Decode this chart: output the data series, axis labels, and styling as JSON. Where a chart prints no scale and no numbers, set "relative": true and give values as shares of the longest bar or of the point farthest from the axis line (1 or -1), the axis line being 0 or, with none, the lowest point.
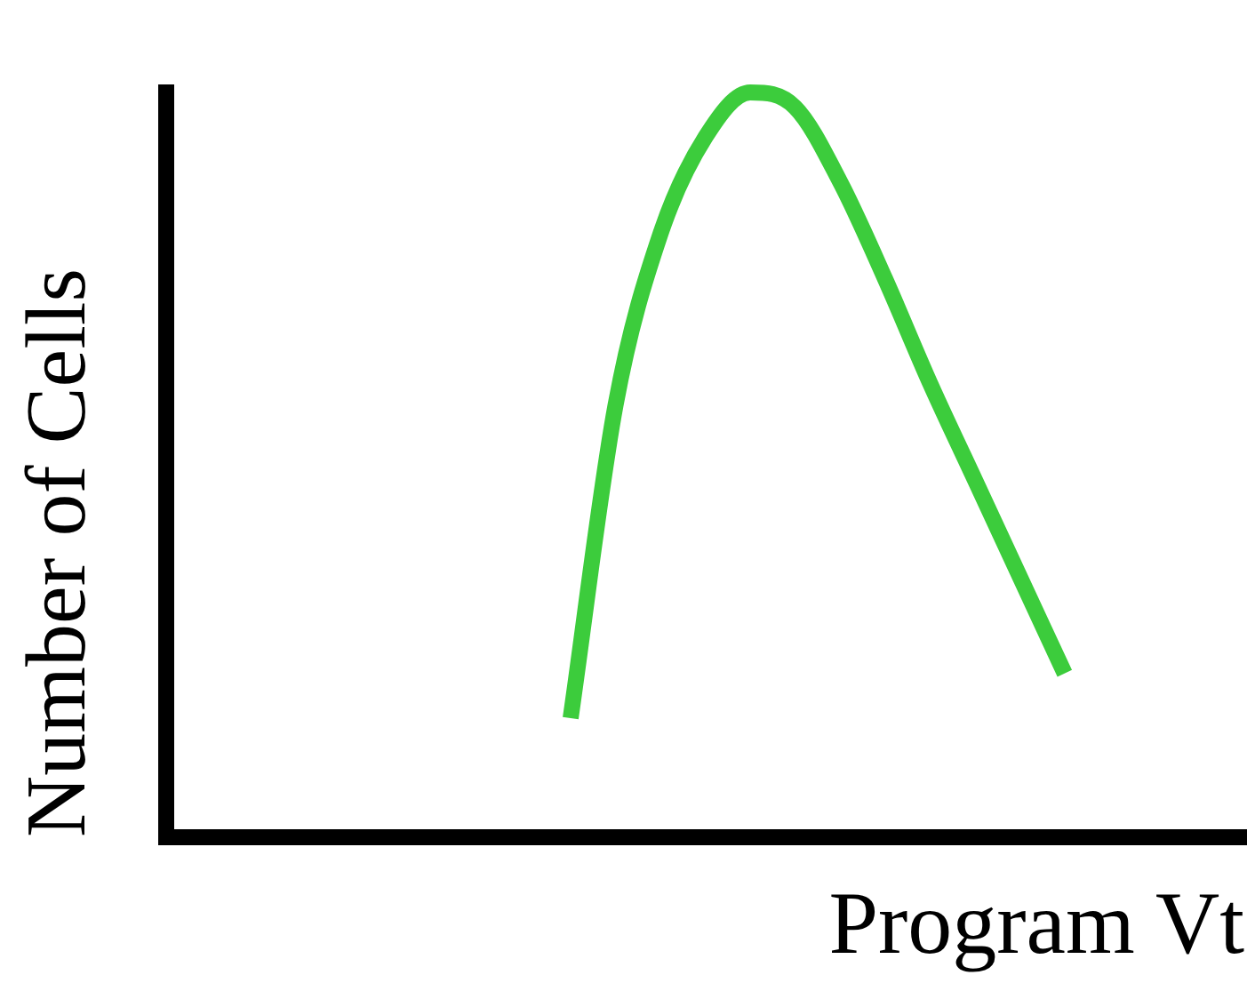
{
  "chart_data": {
    "type": "line",
    "relative": true,
    "xlabel": "Program Vt",
    "ylabel": "Number of Cells",
    "grid": false,
    "legend": false,
    "marker": "none",
    "line_style": "solid",
    "categories": [
      null,
      null,
      null,
      null,
      null,
      null,
      null,
      null,
      null,
      null,
      null,
      null,
      null,
      null,
      null,
      null,
      null,
      null,
      null,
      null,
      null,
      null,
      null,
      null,
      null
    ],
    "series": [
      {
        "color": "#3ccc3c",
        "values": [
          null,
          null,
          null,
          null,
          null,
          null,
          null,
          null,
          null,
          0.16,
          0.58,
          0.81,
          0.94,
          1.0,
          0.98,
          0.88,
          0.75,
          0.61,
          0.48,
          0.35,
          0.22,
          null,
          null,
          null,
          null
        ]
      }
    ]
  }
}
